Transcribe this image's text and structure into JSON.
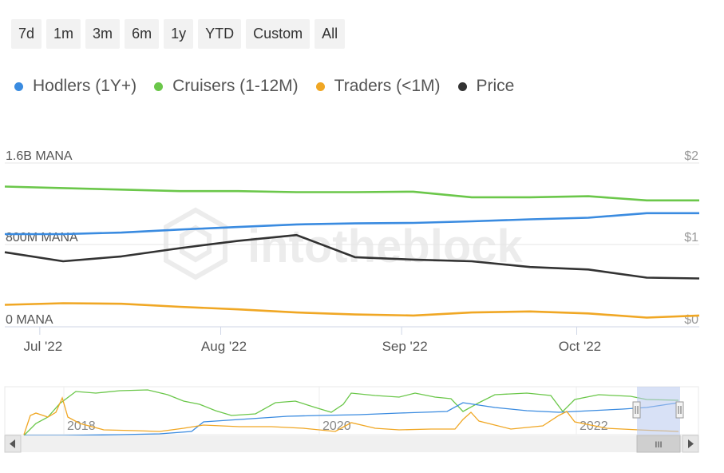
{
  "range_buttons": [
    "7d",
    "1m",
    "3m",
    "6m",
    "1y",
    "YTD",
    "Custom",
    "All"
  ],
  "legend": [
    {
      "label": "Hodlers (1Y+)",
      "color": "#3a8be0"
    },
    {
      "label": "Cruisers (1-12M)",
      "color": "#6bc74a"
    },
    {
      "label": "Traders (<1M)",
      "color": "#f0a724"
    },
    {
      "label": "Price",
      "color": "#333333"
    }
  ],
  "navigator": {
    "years": [
      "2018",
      "2020",
      "2022"
    ],
    "scroll_grip": "III"
  },
  "chart_data": {
    "type": "line",
    "title": "",
    "watermark": "intotheblock",
    "x_range": [
      "2022-06-25",
      "2022-10-22"
    ],
    "x_ticks": [
      "Jul '22",
      "Aug '22",
      "Sep '22",
      "Oct '22"
    ],
    "y_left": {
      "ticks": [
        "0 MANA",
        "800M MANA",
        "1.6B MANA"
      ],
      "range": [
        0,
        1600000000
      ]
    },
    "y_right": {
      "ticks": [
        "$0",
        "$1",
        "$2"
      ],
      "range": [
        0,
        2
      ]
    },
    "dates": [
      "2022-06-25",
      "2022-07-05",
      "2022-07-15",
      "2022-07-25",
      "2022-08-04",
      "2022-08-14",
      "2022-08-24",
      "2022-09-03",
      "2022-09-13",
      "2022-09-23",
      "2022-10-03",
      "2022-10-13",
      "2022-10-22"
    ],
    "series": [
      {
        "name": "Hodlers (1Y+)",
        "axis": "left",
        "color": "#3a8be0",
        "values": [
          905000000,
          905000000,
          920000000,
          950000000,
          975000000,
          1000000000,
          1010000000,
          1015000000,
          1030000000,
          1050000000,
          1065000000,
          1110000000,
          1110000000
        ]
      },
      {
        "name": "Cruisers (1-12M)",
        "axis": "left",
        "color": "#6bc74a",
        "values": [
          1370000000,
          1355000000,
          1340000000,
          1325000000,
          1325000000,
          1315000000,
          1315000000,
          1320000000,
          1265000000,
          1265000000,
          1275000000,
          1235000000,
          1235000000
        ]
      },
      {
        "name": "Traders (<1M)",
        "axis": "left",
        "color": "#f0a724",
        "values": [
          215000000,
          230000000,
          225000000,
          195000000,
          170000000,
          140000000,
          120000000,
          110000000,
          140000000,
          150000000,
          130000000,
          90000000,
          110000000
        ]
      },
      {
        "name": "Price",
        "axis": "right",
        "color": "#333333",
        "values": [
          0.91,
          0.8,
          0.86,
          0.96,
          1.05,
          1.12,
          0.85,
          0.82,
          0.8,
          0.73,
          0.7,
          0.6,
          0.59
        ]
      }
    ]
  }
}
